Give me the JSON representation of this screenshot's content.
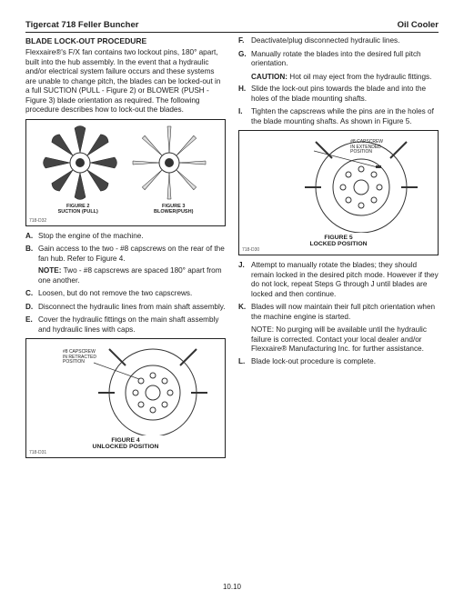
{
  "header": {
    "left": "Tigercat 718 Feller Buncher",
    "right": "Oil Cooler"
  },
  "section_title": "BLADE LOCK-OUT PROCEDURE",
  "intro": "Flexxaire®'s F/X fan contains two lockout pins, 180° apart, built into the hub assembly. In the event that a hydraulic and/or electrical system failure occurs and these systems are unable to change pitch, the blades can be locked-out in a full SUCTION (PULL - Figure 2) or BLOWER (PUSH - Figure 3) blade orientation as required. The following procedure describes how to lock-out the blades.",
  "fig23": {
    "code": "718-D32",
    "left_label_a": "FIGURE 2",
    "left_label_b": "SUCTION (PULL)",
    "right_label_a": "FIGURE 3",
    "right_label_b": "BLOWER(PUSH)"
  },
  "fig4": {
    "code": "718-D31",
    "title_a": "FIGURE 4",
    "title_b": "UNLOCKED POSITION",
    "annot": "#8 CAPSCREW\nIN RETRACTED\nPOSITION"
  },
  "fig5": {
    "code": "718-D30",
    "title_a": "FIGURE 5",
    "title_b": "LOCKED POSITION",
    "annot": "#8 CAPSCREW\nIN EXTENDED\nPOSITION"
  },
  "steps_left": [
    {
      "l": "A.",
      "t": "Stop the engine of the machine."
    },
    {
      "l": "B.",
      "t": "Gain access to the two - #8 capscrews on the rear of the fan hub. Refer to Figure 4.",
      "note": "Two - #8 capscrews are spaced 180° apart from one another."
    },
    {
      "l": "C.",
      "t": "Loosen, but do not remove the two capscrews."
    },
    {
      "l": "D.",
      "t": "Disconnect the hydraulic lines from main shaft assembly."
    },
    {
      "l": "E.",
      "t": "Cover the hydraulic fittings on the main shaft assembly and hydraulic lines with caps."
    }
  ],
  "steps_right_top": [
    {
      "l": "F.",
      "t": "Deactivate/plug disconnected hydraulic lines."
    },
    {
      "l": "G.",
      "t": "Manually rotate the blades into the desired full pitch orientation.",
      "caution": "Hot oil may eject from the hydraulic fittings."
    },
    {
      "l": "H.",
      "t": "Slide the lock-out pins towards the blade and into the holes of the blade mounting shafts."
    },
    {
      "l": "I.",
      "t": "Tighten the capscrews while the pins are in the holes of the blade mounting shafts. As shown in Figure 5."
    }
  ],
  "steps_right_bottom": [
    {
      "l": "J.",
      "t": "Attempt to manually rotate the blades; they should remain locked in the desired pitch mode. However if they do not lock, repeat Steps G through J until blades are locked and then continue."
    },
    {
      "l": "K.",
      "t": "Blades will now maintain their full pitch orientation when the machine engine is started.",
      "noteblock": "No purging will be available until the hydraulic failure is corrected. Contact your local dealer and/or Flexxaire® Manufacturing Inc. for further assistance."
    },
    {
      "l": "L.",
      "t": "Blade lock-out procedure is complete."
    }
  ],
  "label_note": "NOTE:",
  "label_caution": "CAUTION:",
  "page_number": "10.10"
}
